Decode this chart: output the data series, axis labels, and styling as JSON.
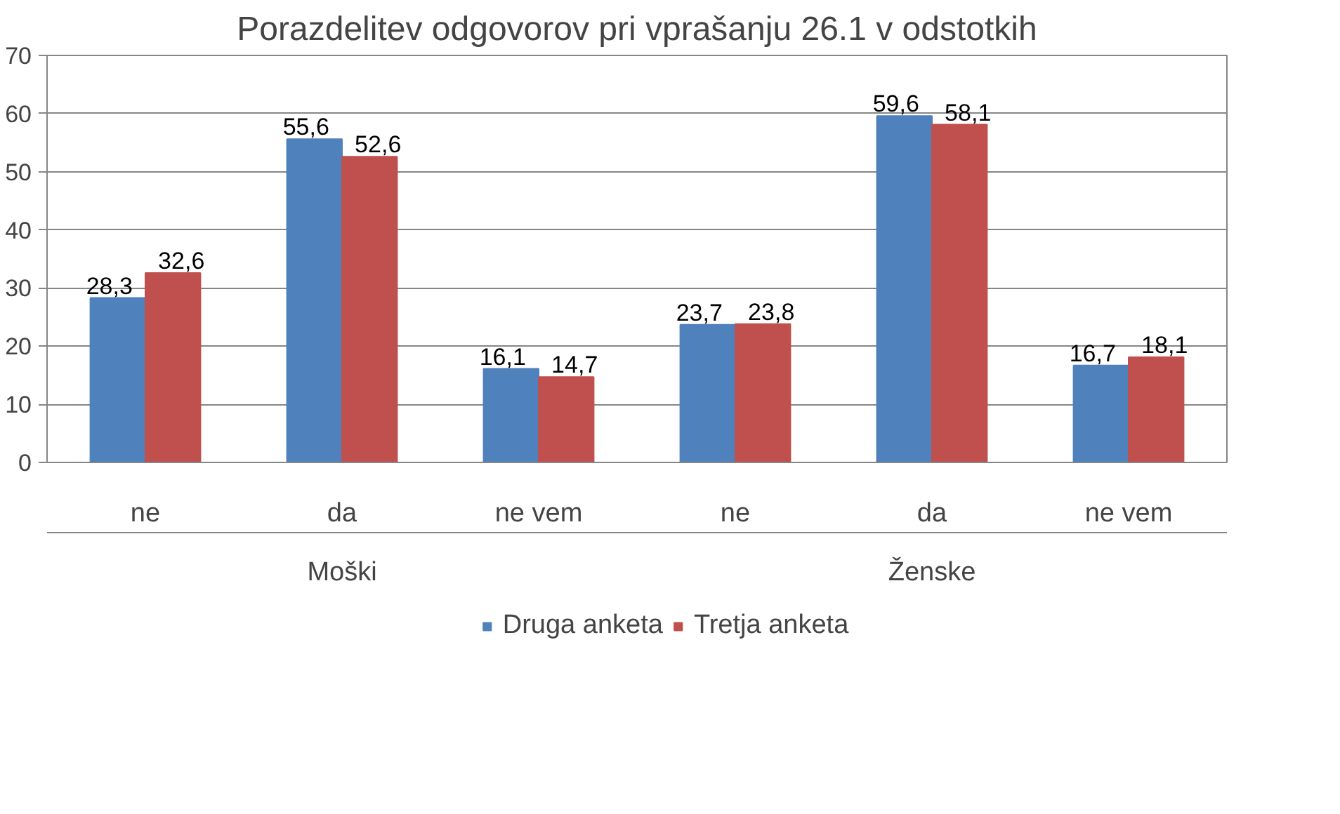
{
  "chart_data": {
    "type": "bar",
    "title": "Porazdelitev odgovorov pri vprašanju 26.1 v odstotkih",
    "categories": [
      "ne",
      "da",
      "ne vem",
      "ne",
      "da",
      "ne vem"
    ],
    "series": [
      {
        "name": "Druga anketa",
        "color": "#4f81bd",
        "values": [
          28.3,
          55.6,
          16.1,
          23.7,
          59.6,
          16.7
        ],
        "value_labels": [
          "28,3",
          "55,6",
          "16,1",
          "23,7",
          "59,6",
          "16,7"
        ]
      },
      {
        "name": "Tretja anketa",
        "color": "#c0504d",
        "values": [
          32.6,
          52.6,
          14.7,
          23.8,
          58.1,
          18.1
        ],
        "value_labels": [
          "32,6",
          "52,6",
          "14,7",
          "23,8",
          "58,1",
          "18,1"
        ]
      }
    ],
    "annotations": [
      "Moški",
      "Ženske"
    ],
    "ylim": [
      0,
      70
    ],
    "yticks": [
      0,
      10,
      20,
      30,
      40,
      50,
      60,
      70
    ],
    "grid": "y",
    "legend": "bottom",
    "data_labels": true
  }
}
